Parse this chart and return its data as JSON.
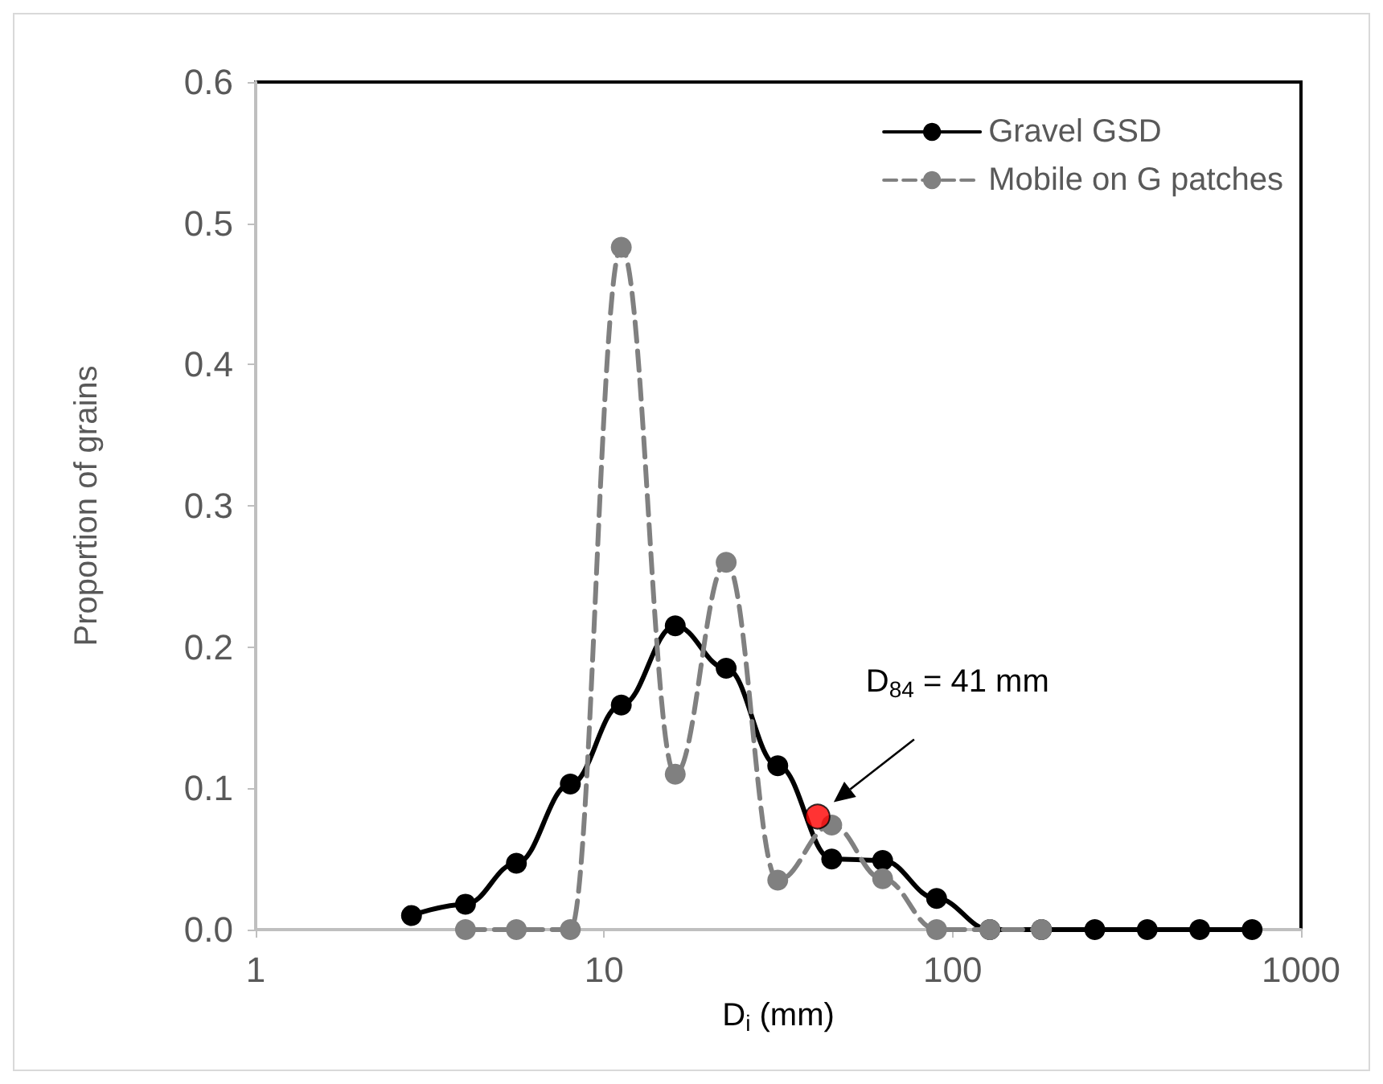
{
  "chart_data": {
    "type": "line",
    "xlabel": "D$_{i}$ (mm)",
    "ylabel": "Proportion of grains",
    "log": "x",
    "xlim": [
      1,
      1000
    ],
    "xticks": [
      1,
      10,
      100,
      1000
    ],
    "ylim": [
      0,
      0.6
    ],
    "yticks": [
      {
        "value": 0,
        "label": "0.0"
      },
      {
        "value": 0.1,
        "label": "0.1"
      },
      {
        "value": 0.2,
        "label": "0.2"
      },
      {
        "value": 0.3,
        "label": "0.3"
      },
      {
        "value": 0.4,
        "label": "0.4"
      },
      {
        "value": 0.5,
        "label": "0.5"
      },
      {
        "value": 0.6,
        "label": "0.6"
      }
    ],
    "grid": false,
    "legend": "top right",
    "marker": "circle",
    "series": [
      {
        "name": "Gravel GSD",
        "color": "#000000",
        "line_style": "solid",
        "x": [
          2.8,
          4,
          5.6,
          8,
          11.2,
          16,
          22.4,
          31.5,
          45,
          63,
          90,
          128,
          180,
          256,
          362,
          512,
          724
        ],
        "values": [
          0.01,
          0.018,
          0.047,
          0.103,
          0.159,
          0.215,
          0.185,
          0.116,
          0.05,
          0.049,
          0.022,
          0,
          0,
          0,
          0,
          0,
          0
        ]
      },
      {
        "name": "Mobile on G patches",
        "color": "#808080",
        "line_style": "dashed",
        "x": [
          4,
          5.6,
          8,
          11.2,
          16,
          22.4,
          31.5,
          45,
          63,
          90,
          128,
          180
        ],
        "values": [
          0,
          0,
          0,
          0.483,
          0.11,
          0.26,
          0.035,
          0.074,
          0.036,
          0,
          0,
          0
        ]
      },
      {
        "type": "scatter",
        "color": "#ff0000",
        "x": [
          41
        ],
        "values": [
          0.08
        ]
      }
    ],
    "annotations": [
      "D$_{84}$ = 41 mm"
    ]
  }
}
